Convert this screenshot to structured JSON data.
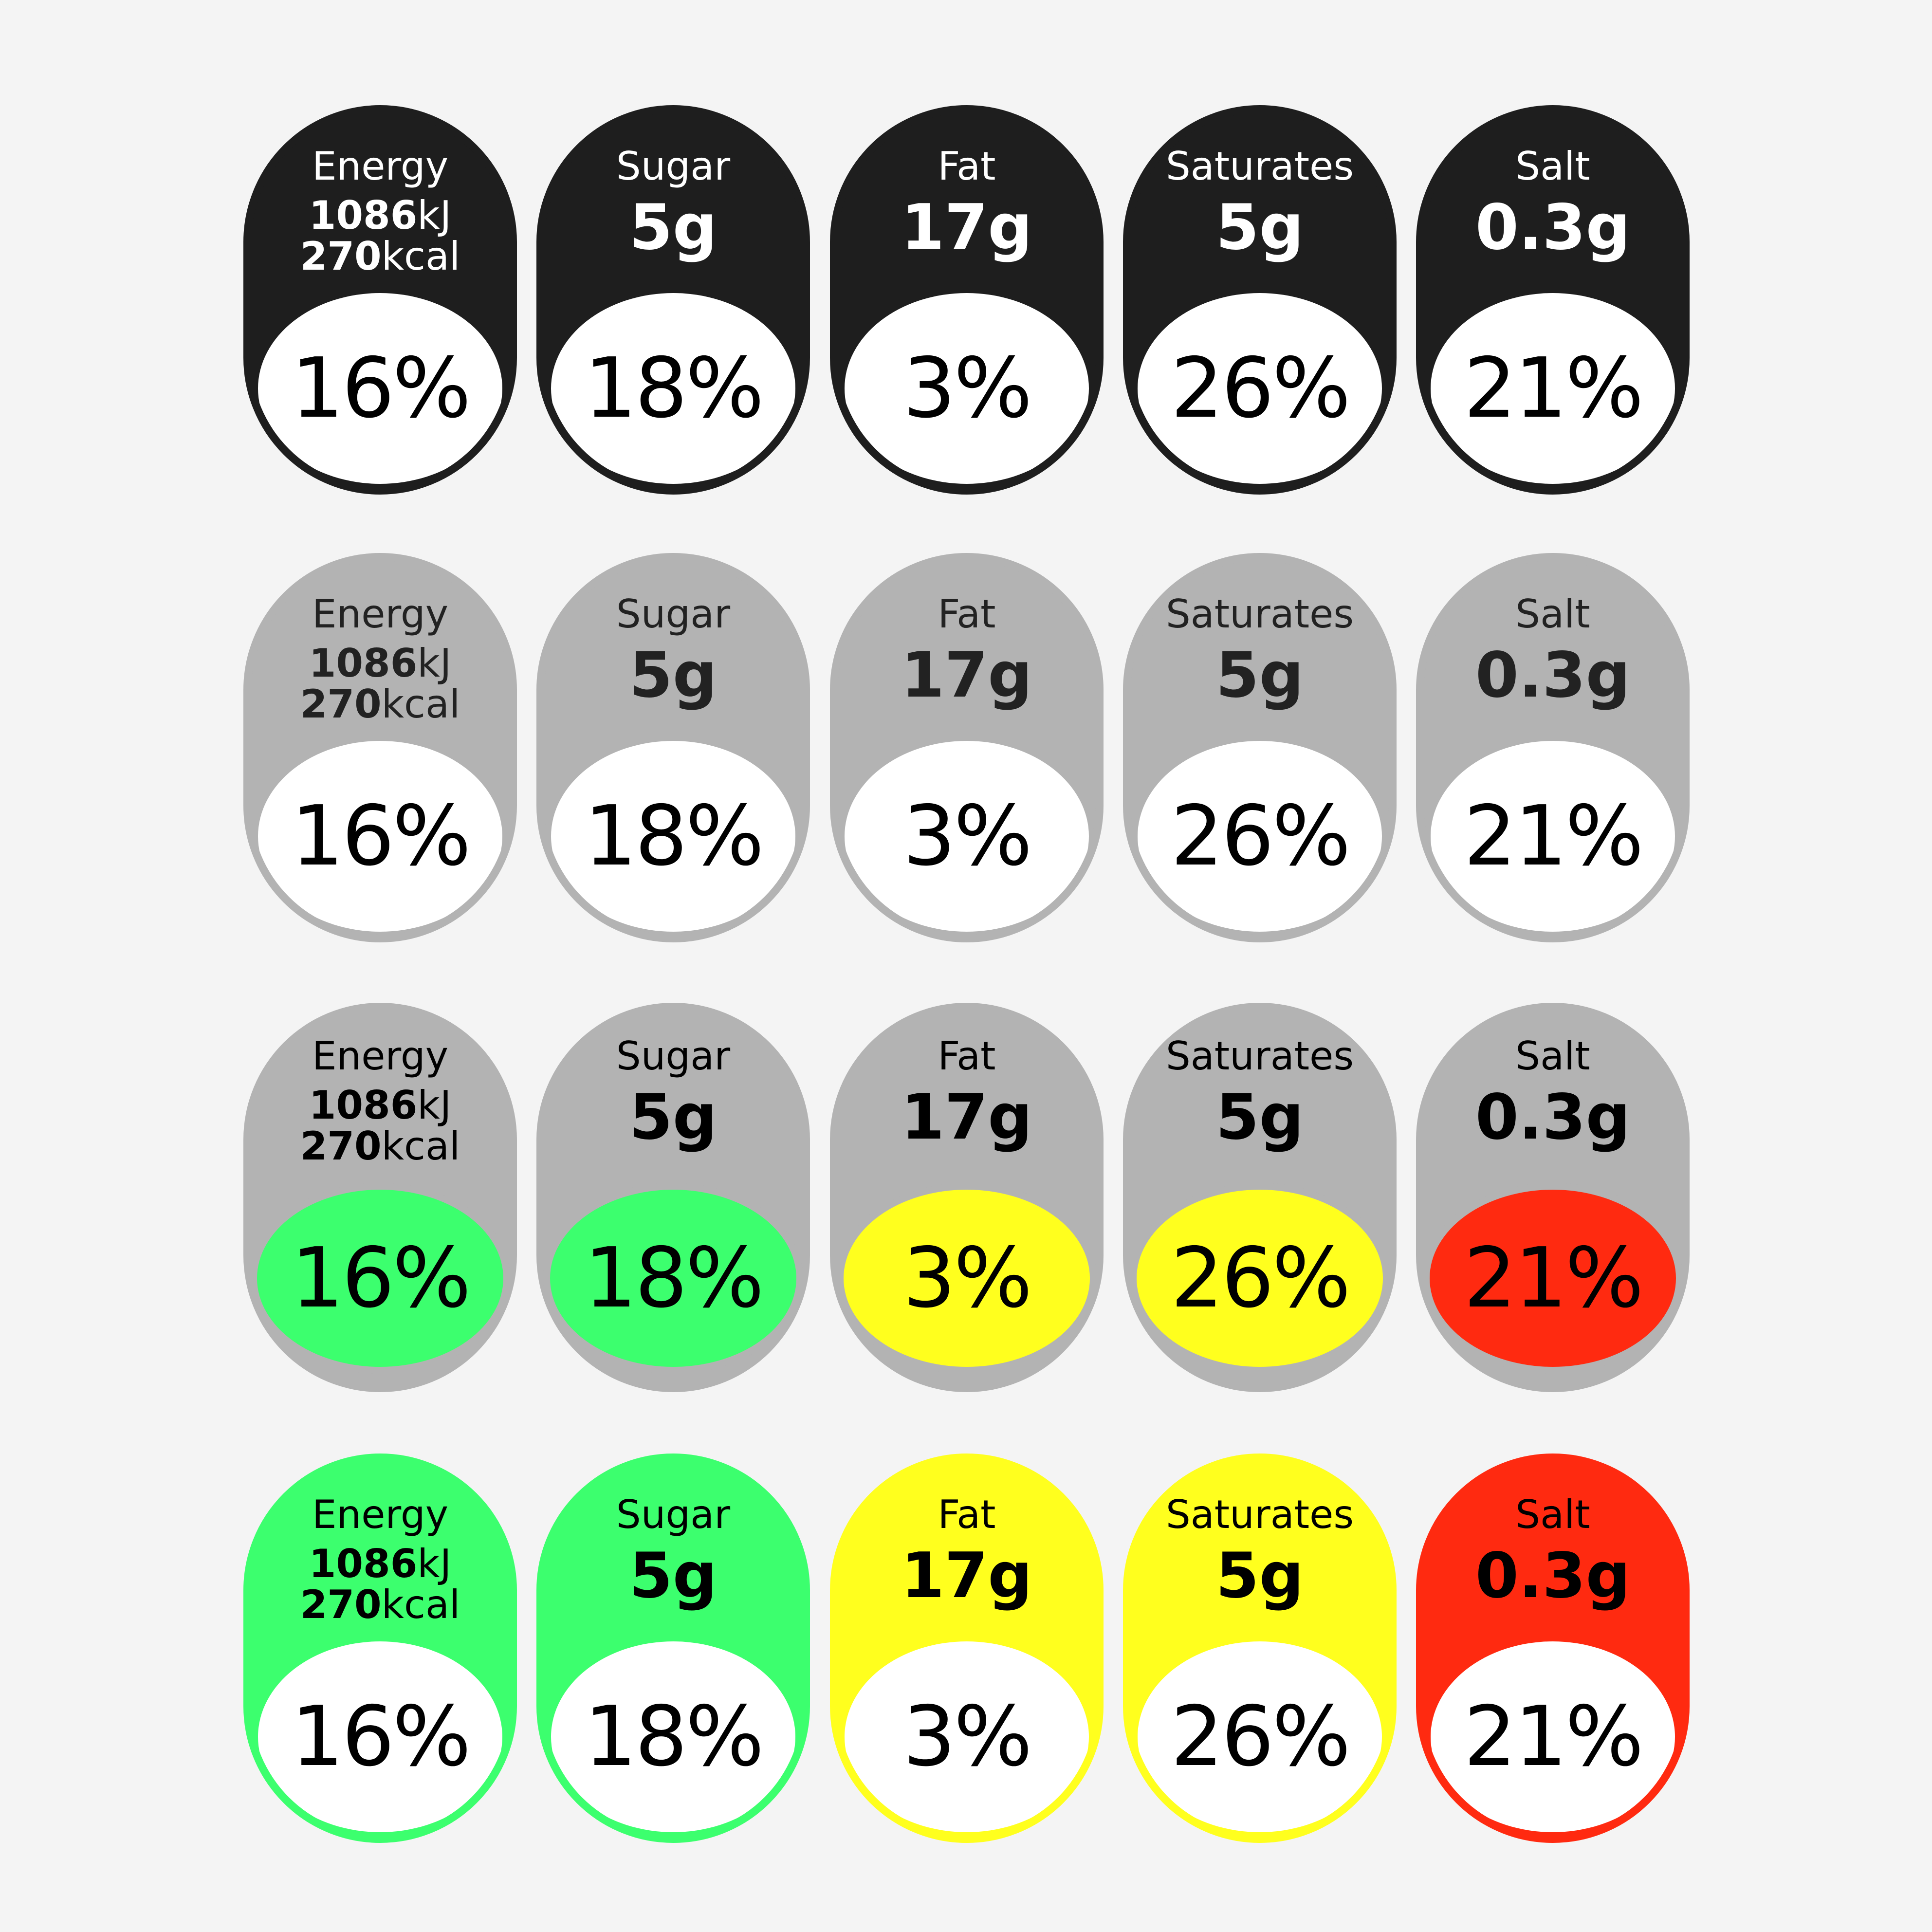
{
  "colors": {
    "black": "#1e1e1e",
    "grey": "#b3b3b3",
    "green": "#3cff6e",
    "amber": "#ffff1e",
    "red": "#ff2a10",
    "white": "#ffffff",
    "text_dark": "#000000",
    "text_light": "#ffffff",
    "text_grey": "#222222"
  },
  "nutrients": [
    {
      "name": "Energy",
      "kj_value": "1086",
      "kj_unit": "kJ",
      "kcal_value": "270",
      "kcal_unit": "kcal",
      "percent": "16%",
      "rating": "green"
    },
    {
      "name": "Sugar",
      "amount": "5g",
      "percent": "18%",
      "rating": "green"
    },
    {
      "name": "Fat",
      "amount": "17g",
      "percent": "3%",
      "rating": "amber"
    },
    {
      "name": "Saturates",
      "amount": "5g",
      "percent": "26%",
      "rating": "amber"
    },
    {
      "name": "Salt",
      "amount": "0.3g",
      "percent": "21%",
      "rating": "red"
    }
  ],
  "label_rows": [
    {
      "style": "monochrome-black"
    },
    {
      "style": "monochrome-grey"
    },
    {
      "style": "grey-with-traffic-light-ovals"
    },
    {
      "style": "full-traffic-light"
    }
  ]
}
